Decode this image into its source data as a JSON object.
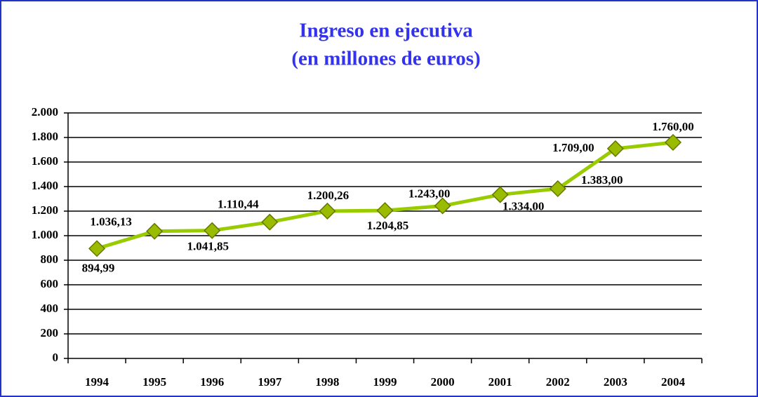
{
  "chart_data": {
    "type": "line",
    "title": [
      "Ingreso en ejecutiva",
      "(en millones de euros)"
    ],
    "categories": [
      "1994",
      "1995",
      "1996",
      "1997",
      "1998",
      "1999",
      "2000",
      "2001",
      "2002",
      "2003",
      "2004"
    ],
    "series": [
      {
        "name": "Ingreso en ejecutiva",
        "color": "#99cc00",
        "values": [
          894.99,
          1036.13,
          1041.85,
          1110.44,
          1200.26,
          1204.85,
          1243.0,
          1334.0,
          1383.0,
          1709.0,
          1760.0
        ],
        "value_labels": [
          "894,99",
          "1.036,13",
          "1.041,85",
          "1.110,44",
          "1.200,26",
          "1.204,85",
          "1.243,00",
          "1.334,00",
          "1.383,00",
          "1.709,00",
          "1.760,00"
        ]
      }
    ],
    "ylim": [
      0,
      2000
    ],
    "yticks": [
      0,
      200,
      400,
      600,
      800,
      {
        "value": 1000,
        "label": "1.000"
      },
      {
        "value": 1200,
        "label": "1.200"
      },
      {
        "value": 1400,
        "label": "1.400"
      },
      {
        "value": 1600,
        "label": "1.600"
      },
      {
        "value": 1800,
        "label": "1.800"
      },
      {
        "value": 2000,
        "label": "2.000"
      }
    ],
    "grid": true
  }
}
